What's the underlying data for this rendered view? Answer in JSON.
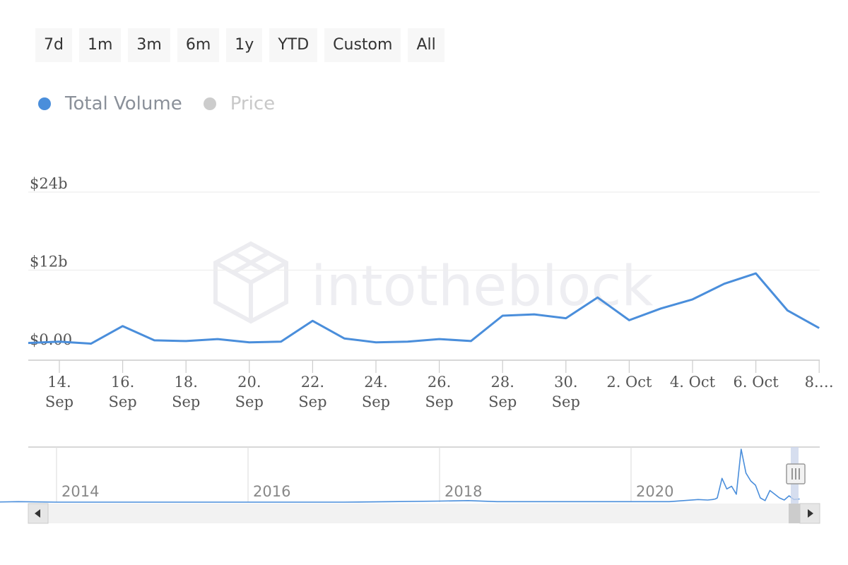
{
  "range_buttons": [
    "7d",
    "1m",
    "3m",
    "6m",
    "1y",
    "YTD",
    "Custom",
    "All"
  ],
  "legend": [
    {
      "label": "Total Volume",
      "color": "#4a8edb",
      "active": true
    },
    {
      "label": "Price",
      "color": "#cccccc",
      "active": false
    }
  ],
  "watermark": "intotheblock",
  "chart_data": {
    "type": "line",
    "series": [
      {
        "name": "Total Volume",
        "color": "#4a8edb",
        "x": [
          "2020-09-12",
          "2020-09-13",
          "2020-09-14",
          "2020-09-15",
          "2020-09-16",
          "2020-09-17",
          "2020-09-18",
          "2020-09-19",
          "2020-09-20",
          "2020-09-21",
          "2020-09-22",
          "2020-09-23",
          "2020-09-24",
          "2020-09-25",
          "2020-09-26",
          "2020-09-27",
          "2020-09-28",
          "2020-09-29",
          "2020-09-30",
          "2020-10-01",
          "2020-10-02",
          "2020-10-03",
          "2020-10-04",
          "2020-10-05",
          "2020-10-06",
          "2020-10-07",
          "2020-10-08"
        ],
        "values": [
          1.3,
          0.8,
          1.0,
          0.7,
          3.4,
          1.2,
          1.1,
          1.4,
          0.9,
          1.0,
          4.2,
          1.5,
          0.9,
          1.0,
          1.4,
          1.1,
          5.0,
          5.2,
          4.6,
          7.8,
          4.3,
          6.1,
          7.5,
          9.9,
          11.5,
          5.8,
          3.1
        ]
      }
    ],
    "y_ticks": [
      "$0.00",
      "$12b",
      "$24b"
    ],
    "y_tick_values": [
      0,
      12,
      24
    ],
    "ylim": [
      0,
      24
    ],
    "x_ticks": [
      {
        "date": "2020-09-14",
        "line1": "14.",
        "line2": "Sep"
      },
      {
        "date": "2020-09-16",
        "line1": "16.",
        "line2": "Sep"
      },
      {
        "date": "2020-09-18",
        "line1": "18.",
        "line2": "Sep"
      },
      {
        "date": "2020-09-20",
        "line1": "20.",
        "line2": "Sep"
      },
      {
        "date": "2020-09-22",
        "line1": "22.",
        "line2": "Sep"
      },
      {
        "date": "2020-09-24",
        "line1": "24.",
        "line2": "Sep"
      },
      {
        "date": "2020-09-26",
        "line1": "26.",
        "line2": "Sep"
      },
      {
        "date": "2020-09-28",
        "line1": "28.",
        "line2": "Sep"
      },
      {
        "date": "2020-09-30",
        "line1": "30.",
        "line2": "Sep"
      },
      {
        "date": "2020-10-02",
        "line1": "2. Oct",
        "line2": ""
      },
      {
        "date": "2020-10-04",
        "line1": "4. Oct",
        "line2": ""
      },
      {
        "date": "2020-10-06",
        "line1": "6. Oct",
        "line2": ""
      },
      {
        "date": "2020-10-08",
        "line1": "8.…",
        "line2": ""
      }
    ],
    "grid": true,
    "legend_position": "top-left",
    "navigator": {
      "year_labels": [
        "2014",
        "2016",
        "2018",
        "2020"
      ],
      "x": [
        2013.3,
        2013.6,
        2014.0,
        2014.5,
        2015.0,
        2015.5,
        2016.0,
        2016.5,
        2017.0,
        2017.5,
        2018.0,
        2018.3,
        2018.6,
        2019.0,
        2019.5,
        2020.0,
        2020.4,
        2020.55,
        2020.7,
        2020.8,
        2020.85,
        2020.88,
        2020.9,
        2020.95,
        2021.0,
        2021.05,
        2021.1,
        2021.15,
        2021.2,
        2021.25,
        2021.3,
        2021.35,
        2021.4,
        2021.45,
        2021.5,
        2021.55,
        2021.6,
        2021.65,
        2021.7,
        2021.76
      ],
      "values": [
        0.0,
        0.1,
        0.0,
        0.0,
        0.0,
        0.0,
        0.0,
        0.0,
        0.0,
        0.1,
        0.2,
        0.3,
        0.1,
        0.1,
        0.1,
        0.1,
        0.1,
        0.3,
        0.5,
        0.4,
        0.5,
        0.6,
        0.8,
        4.5,
        2.5,
        3.0,
        1.5,
        10.0,
        5.5,
        4.0,
        3.2,
        0.8,
        0.3,
        2.2,
        1.5,
        0.8,
        0.4,
        1.2,
        0.5,
        0.6
      ]
    }
  }
}
